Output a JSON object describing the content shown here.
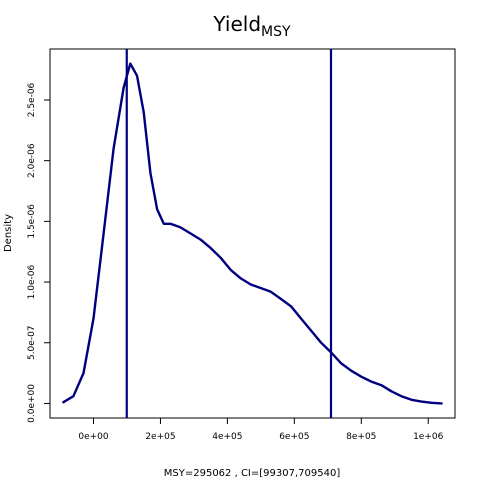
{
  "chart_data": {
    "type": "line",
    "title": "Yield",
    "title_subscript": "MSY",
    "xlabel": "MSY=295062 , CI=[99307,709540]",
    "ylabel": "Density",
    "xlim": [
      -130000,
      1080000
    ],
    "ylim": [
      -1.2e-07,
      2.92e-06
    ],
    "x_ticks": [
      0,
      200000,
      400000,
      600000,
      800000,
      1000000
    ],
    "x_tick_labels": [
      "0e+00",
      "2e+05",
      "4e+05",
      "6e+05",
      "8e+05",
      "1e+06"
    ],
    "y_ticks": [
      0,
      5e-07,
      1e-06,
      1.5e-06,
      2e-06,
      2.5e-06
    ],
    "y_tick_labels": [
      "0.0e+00",
      "5.0e-07",
      "1.0e-06",
      "1.5e-06",
      "2.0e-06",
      "2.5e-06"
    ],
    "grid": false,
    "line_color": "#00007f",
    "vlines": [
      99307,
      709540
    ],
    "series": [
      {
        "x": [
          -90000,
          -60000,
          -30000,
          0,
          30000,
          60000,
          90000,
          110000,
          130000,
          150000,
          170000,
          190000,
          210000,
          230000,
          260000,
          290000,
          320000,
          350000,
          380000,
          410000,
          440000,
          470000,
          500000,
          530000,
          560000,
          590000,
          620000,
          650000,
          680000,
          710000,
          740000,
          770000,
          800000,
          830000,
          860000,
          890000,
          920000,
          950000,
          980000,
          1010000,
          1040000
        ],
        "y": [
          1e-08,
          6e-08,
          2.5e-07,
          7e-07,
          1.4e-06,
          2.1e-06,
          2.6e-06,
          2.8e-06,
          2.7e-06,
          2.4e-06,
          1.9e-06,
          1.6e-06,
          1.48e-06,
          1.48e-06,
          1.45e-06,
          1.4e-06,
          1.35e-06,
          1.28e-06,
          1.2e-06,
          1.1e-06,
          1.03e-06,
          9.8e-07,
          9.5e-07,
          9.2e-07,
          8.6e-07,
          8e-07,
          7e-07,
          6e-07,
          5e-07,
          4.2e-07,
          3.3e-07,
          2.7e-07,
          2.2e-07,
          1.8e-07,
          1.5e-07,
          1e-07,
          6e-08,
          3e-08,
          1.5e-08,
          5e-09,
          0.0
        ]
      }
    ]
  }
}
